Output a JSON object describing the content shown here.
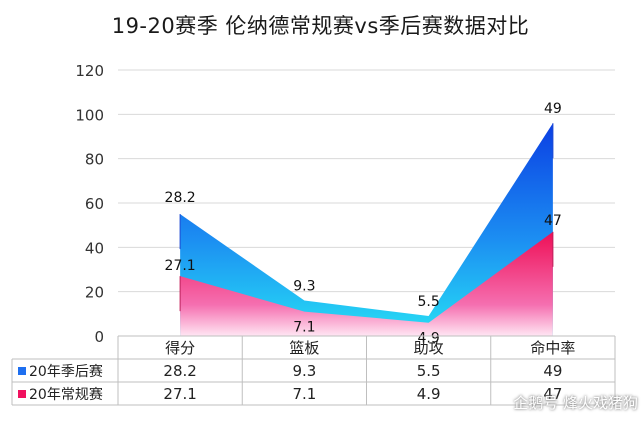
{
  "title": "19-20赛季 伦纳德常规赛vs季后赛数据对比",
  "watermark": "企鹅号 烽火戏猪狗",
  "chart_data": {
    "type": "area",
    "title": "19-20赛季 伦纳德常规赛vs季后赛数据对比",
    "categories": [
      "得分",
      "篮板",
      "助攻",
      "命中率"
    ],
    "ylim": [
      0,
      120
    ],
    "yticks": [
      0,
      20,
      40,
      60,
      80,
      100,
      120
    ],
    "grid": true,
    "legend_placement": "data table (left of rows)",
    "plotted_values_note_shown": false,
    "series": [
      {
        "name": "20年季后赛",
        "values": [
          28.2,
          9.3,
          5.5,
          49
        ],
        "plotted": [
          55,
          16,
          9,
          96
        ],
        "color": "#1e6ff0",
        "color_light": "#29d6f2"
      },
      {
        "name": "20年常规赛",
        "values": [
          27.1,
          7.1,
          4.9,
          47
        ],
        "plotted": [
          27,
          11,
          6,
          47
        ],
        "color": "#f0115f",
        "color_light": "#ffffff"
      }
    ]
  }
}
